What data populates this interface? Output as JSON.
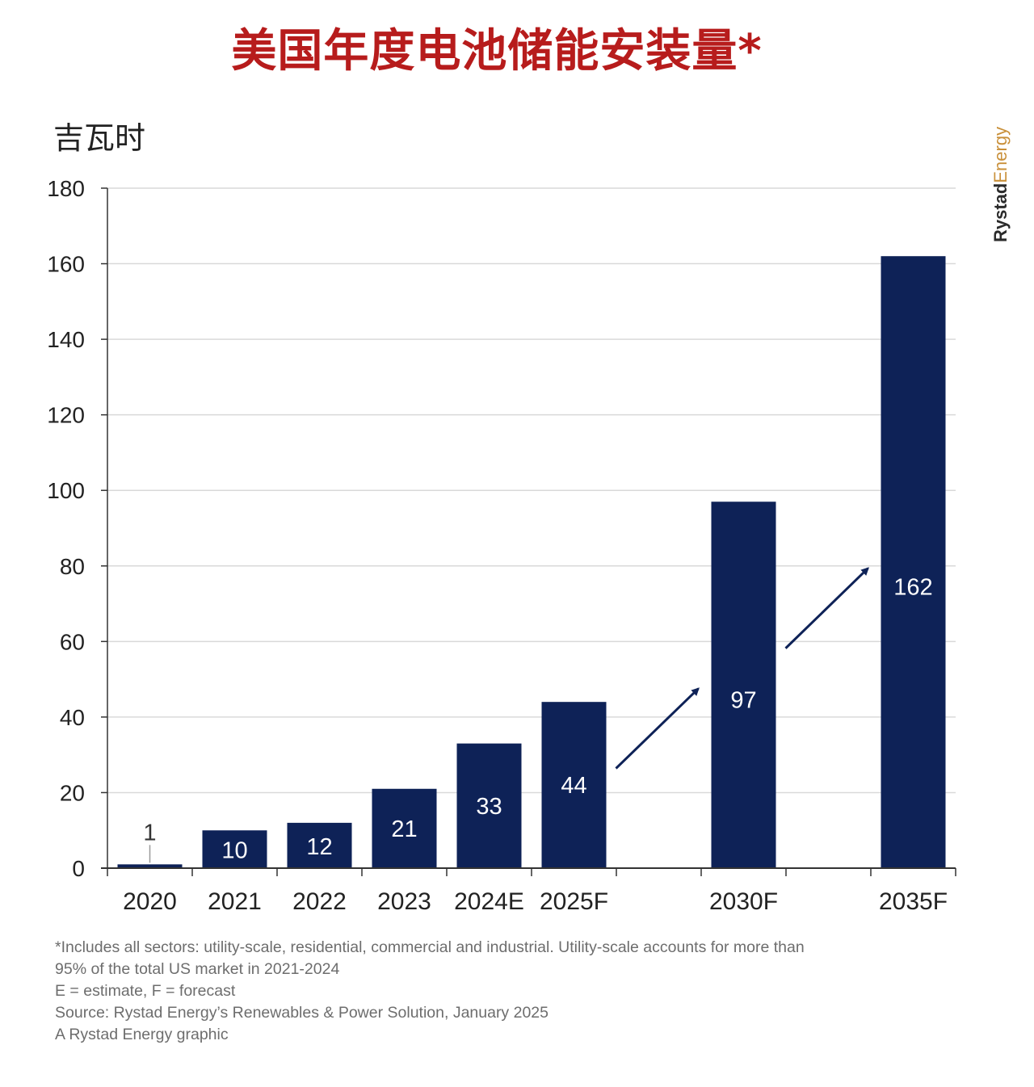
{
  "title": "美国年度电池储能安装量*",
  "unit_label": "吉瓦时",
  "brand": {
    "part1": "Rystad",
    "part2": "Energy"
  },
  "colors": {
    "bar": "#0e2257",
    "title": "#b71c1c",
    "grid": "#d9d9d9",
    "axis": "#333333"
  },
  "chart_data": {
    "type": "bar",
    "categories": [
      "2020",
      "2021",
      "2022",
      "2023",
      "2024E",
      "2025F",
      "2030F",
      "2035F"
    ],
    "values": [
      1,
      10,
      12,
      21,
      33,
      44,
      97,
      162
    ],
    "ylim": [
      0,
      180
    ],
    "yticks": [
      0,
      20,
      40,
      60,
      80,
      100,
      120,
      140,
      160,
      180
    ],
    "grid": true,
    "ylabel": "吉瓦时",
    "annotations": [
      "arrow 2025F→2030F",
      "arrow 2030F→2035F"
    ]
  },
  "notes": [
    "*Includes all sectors: utility-scale, residential, commercial and industrial. Utility-scale accounts for more than",
    "95% of the total US market in 2021-2024",
    "E = estimate, F = forecast",
    "Source: Rystad Energy’s Renewables & Power Solution, January 2025",
    "A Rystad Energy graphic"
  ]
}
